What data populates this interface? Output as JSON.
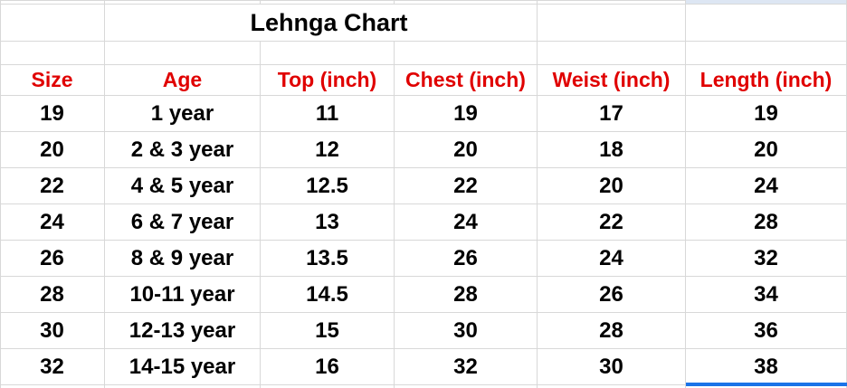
{
  "title": "Lehnga Chart",
  "columns": [
    "Size",
    "Age",
    "Top (inch)",
    "Chest (inch)",
    "Weist (inch)",
    "Length (inch)"
  ],
  "rows": [
    [
      "19",
      "1 year",
      "11",
      "19",
      "17",
      "19"
    ],
    [
      "20",
      "2 & 3 year",
      "12",
      "20",
      "18",
      "20"
    ],
    [
      "22",
      "4 & 5 year",
      "12.5",
      "22",
      "20",
      "24"
    ],
    [
      "24",
      "6 & 7 year",
      "13",
      "24",
      "22",
      "28"
    ],
    [
      "26",
      "8 & 9 year",
      "13.5",
      "26",
      "24",
      "32"
    ],
    [
      "28",
      "10-11 year",
      "14.5",
      "28",
      "26",
      "34"
    ],
    [
      "30",
      "12-13 year",
      "15",
      "30",
      "28",
      "36"
    ],
    [
      "32",
      "14-15 year",
      "16",
      "32",
      "30",
      "38"
    ]
  ],
  "colors": {
    "gridline": "#d8d8d8",
    "header_text": "#e00000",
    "body_text": "#000000",
    "selection_blue": "#1a73e8",
    "selection_fill": "#dde6f3",
    "sheet_bg": "#ffffff"
  }
}
